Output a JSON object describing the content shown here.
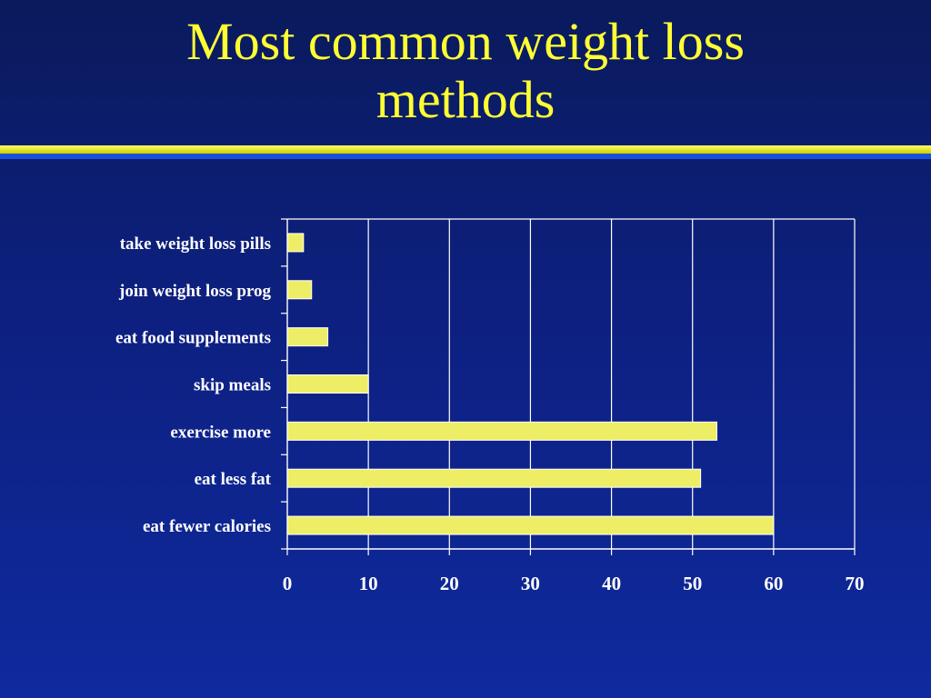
{
  "slide": {
    "title_line1": "Most common weight loss",
    "title_line2": "methods"
  },
  "colors": {
    "bar_fill": "#eeee66",
    "bar_stroke": "#ffffff",
    "gridline": "#ffffff",
    "title": "#ffff33"
  },
  "chart_data": {
    "type": "bar",
    "orientation": "horizontal",
    "title": "",
    "xlabel": "",
    "ylabel": "",
    "categories": [
      "take weight loss pills",
      "join weight loss prog",
      "eat food supplements",
      "skip meals",
      "exercise more",
      "eat less fat",
      "eat fewer calories"
    ],
    "values": [
      2,
      3,
      5,
      10,
      53,
      51,
      60
    ],
    "xlim": [
      0,
      70
    ],
    "xticks": [
      0,
      10,
      20,
      30,
      40,
      50,
      60,
      70
    ],
    "grid": "vertical",
    "legend": "none"
  }
}
